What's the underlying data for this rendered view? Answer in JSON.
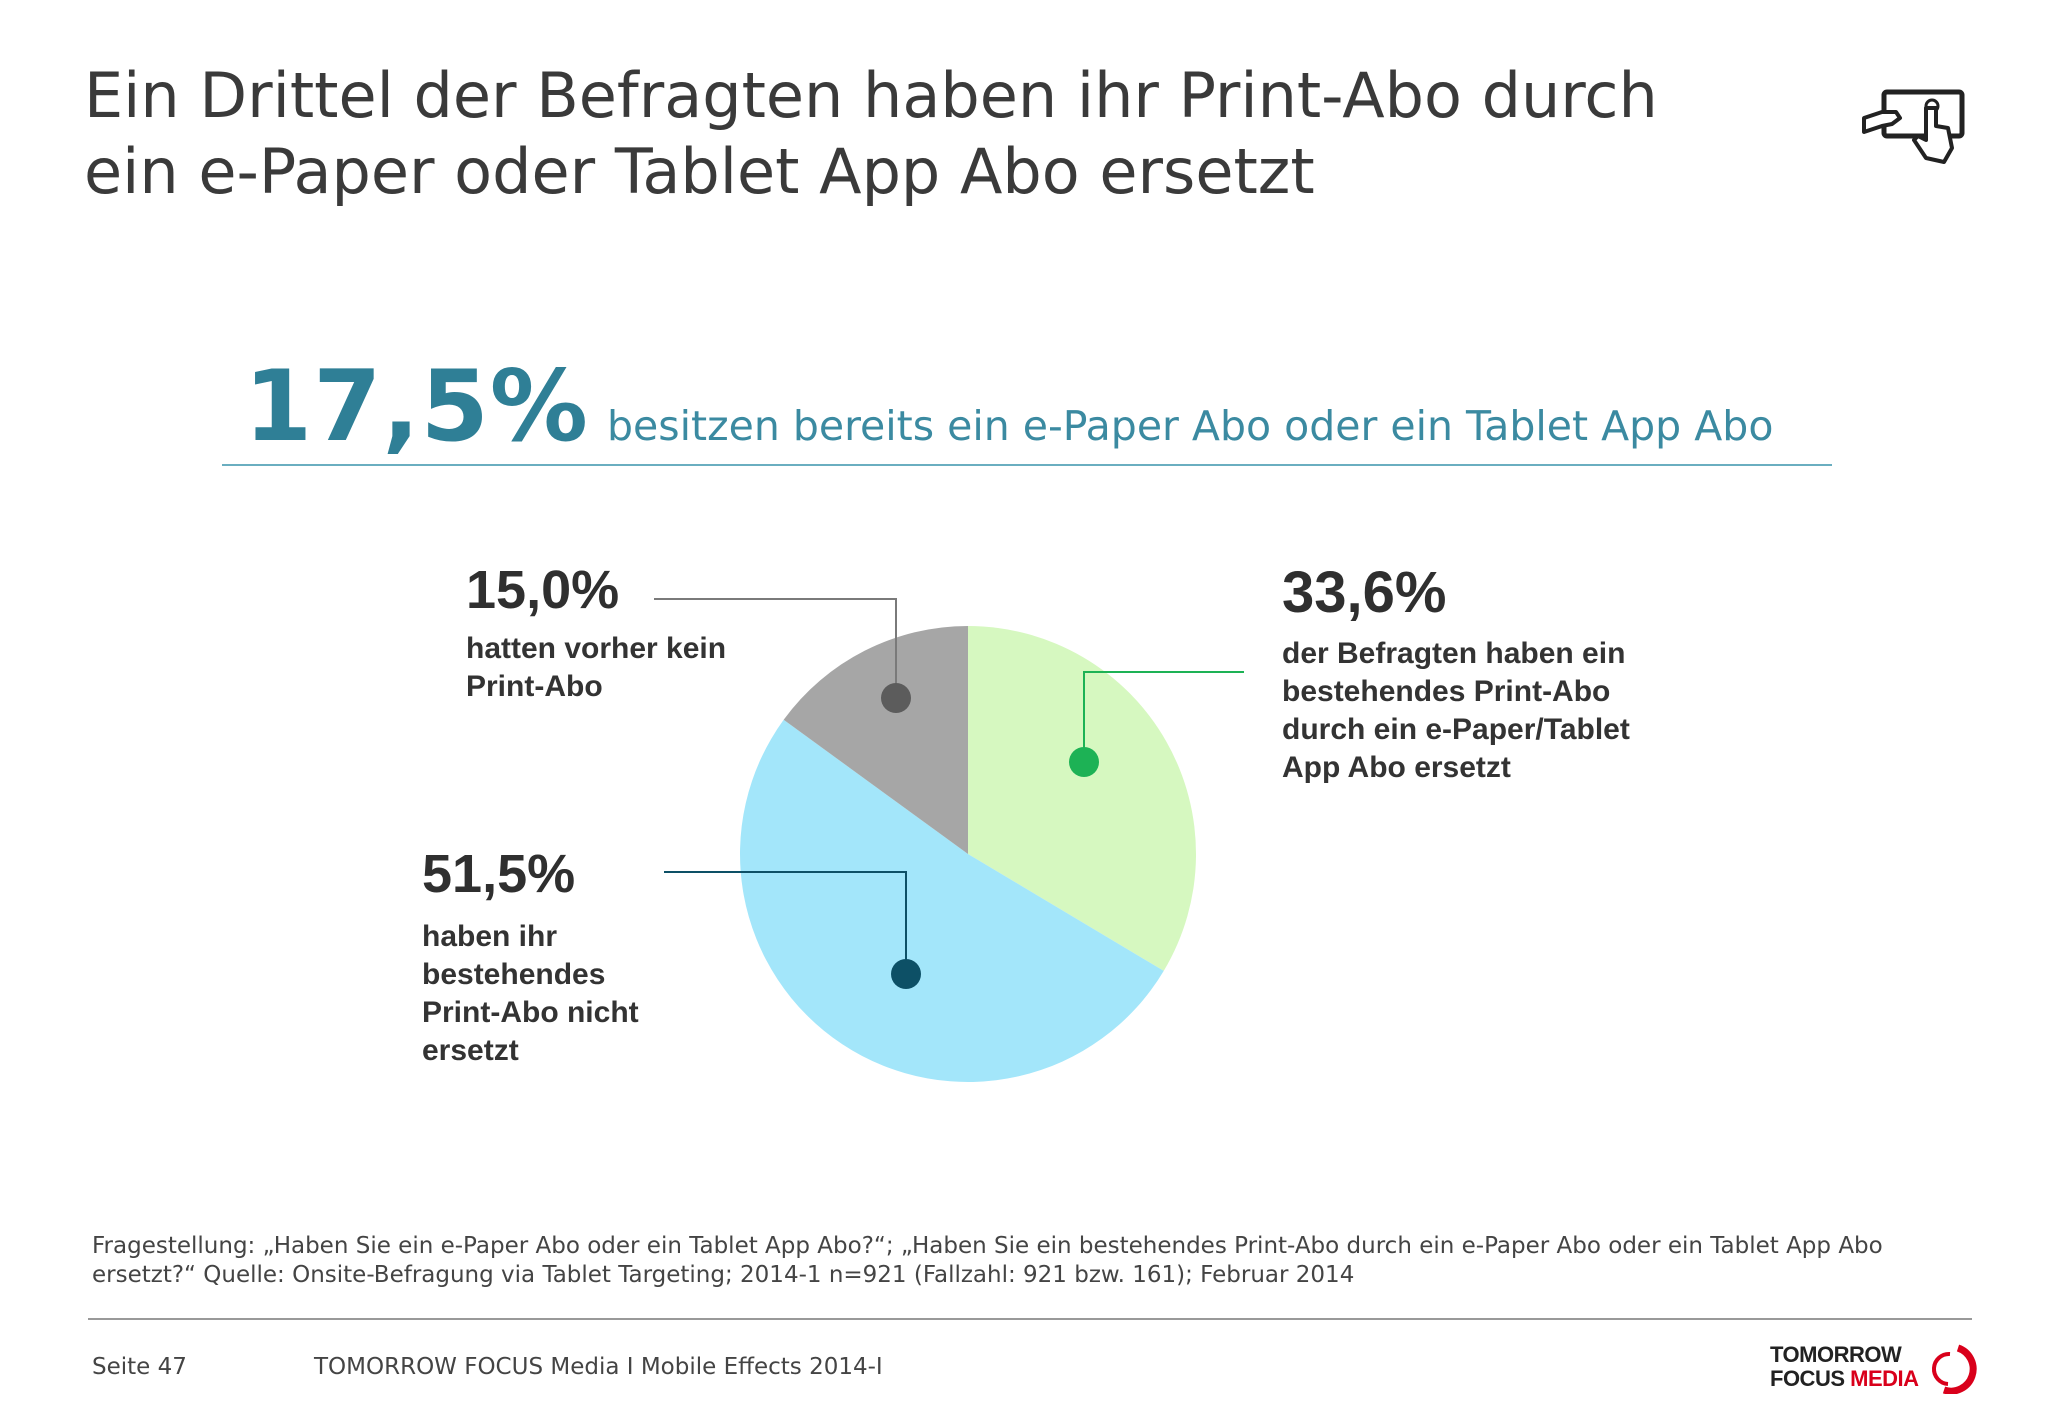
{
  "title": {
    "line1": "Ein Drittel der Befragten haben ihr Print-Abo durch",
    "line2": "ein e-Paper oder Tablet App Abo ersetzt"
  },
  "headline": {
    "value": "17,5%",
    "text": "besitzen bereits ein e-Paper Abo oder ein Tablet App Abo"
  },
  "chart_data": {
    "type": "pie",
    "slices": [
      {
        "value": 33.6,
        "label_value": "33,6%",
        "label": "der Befragten haben ein bestehendes Print-Abo durch ein e-Paper/Tablet App Abo ersetzt",
        "color": "#d6f8c0",
        "dot_color": "#1db255"
      },
      {
        "value": 51.5,
        "label_value": "51,5%",
        "label": "haben ihr bestehendes Print-Abo nicht ersetzt",
        "color": "#a3e6fa",
        "dot_color": "#0d5066"
      },
      {
        "value": 15.0,
        "label_value": "15,0%",
        "label": "hatten vorher kein Print-Abo",
        "color": "#a6a6a6",
        "dot_color": "#5c5c5c"
      }
    ]
  },
  "footnote": "Fragestellung: „Haben Sie ein e-Paper Abo oder ein Tablet App Abo?“; „Haben Sie ein bestehendes  Print-Abo durch ein e-Paper Abo oder ein Tablet App Abo ersetzt?“ Quelle: Onsite-Befragung via Tablet Targeting; 2014-1 n=921 (Fallzahl: 921 bzw. 161); Februar 2014",
  "footer": {
    "page": "Seite 47",
    "title": "TOMORROW FOCUS Media  I  Mobile Effects 2014-I"
  },
  "logo": {
    "line1": "TOMORROW",
    "line2a": "FOCUS",
    "line2b": "MEDIA"
  },
  "icons": {
    "header": "tablet-touch-icon"
  }
}
